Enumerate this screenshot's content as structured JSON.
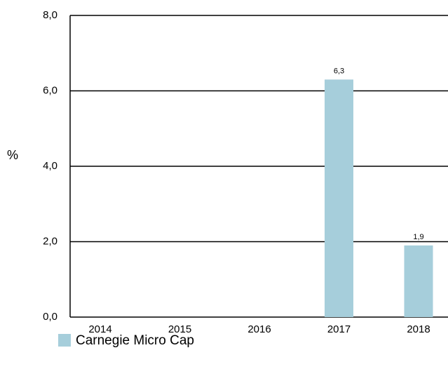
{
  "chart_data": {
    "type": "bar",
    "y_axis_label": "%",
    "categories": [
      "2014",
      "2015",
      "2016",
      "2017",
      "2018"
    ],
    "series": [
      {
        "name": "Carnegie Micro Cap",
        "color": "#a6cedb",
        "values": [
          null,
          null,
          null,
          6.3,
          1.9
        ],
        "value_labels": [
          null,
          null,
          null,
          "6,3",
          "1,9"
        ]
      }
    ],
    "ylim": [
      0,
      8
    ],
    "yticks": [
      {
        "value": 0,
        "label": "0,0"
      },
      {
        "value": 2,
        "label": "2,0"
      },
      {
        "value": 4,
        "label": "4,0"
      },
      {
        "value": 6,
        "label": "6,0"
      },
      {
        "value": 8,
        "label": "8,0"
      }
    ],
    "grid": true,
    "legend": "bottom-left"
  }
}
